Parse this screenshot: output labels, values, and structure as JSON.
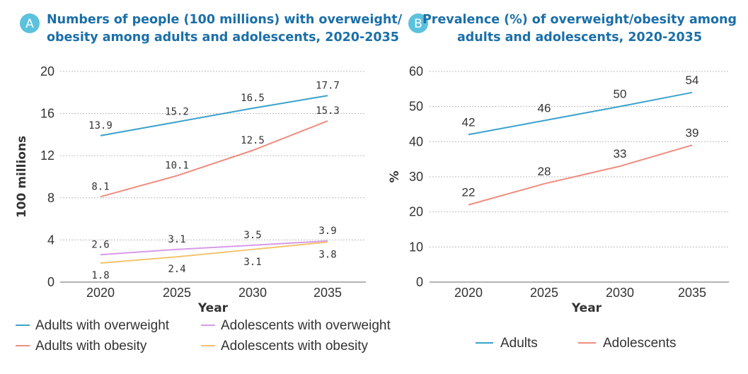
{
  "panels": {
    "a": {
      "badge": "A",
      "title_line1": "Numbers of people (100 millions) with overweight/",
      "title_line2": "obesity among adults and adolescents,  2020-2035"
    },
    "b": {
      "badge": "B",
      "title_line1": "Prevalence (%) of overweight/obesity among",
      "title_line2": "adults and adolescents,  2020-2035"
    }
  },
  "chart_data": [
    {
      "type": "line",
      "title": "Numbers of people (100 millions) with overweight/obesity among adults and adolescents,  2020-2035",
      "xlabel": "Year",
      "ylabel": "100 millions",
      "x": [
        2020,
        2025,
        2030,
        2035
      ],
      "xticks": [
        "2020",
        "2025",
        "2030",
        "2035"
      ],
      "ylim": [
        0,
        20
      ],
      "yticks": [
        0,
        4,
        8,
        12,
        16,
        20
      ],
      "legend": "bottom",
      "series": [
        {
          "name": "Adults with overweight",
          "color": "#3aa2cc",
          "values": [
            13.9,
            15.2,
            16.5,
            17.7
          ],
          "labels": [
            "13.9",
            "15.2",
            "16.5",
            "17.7"
          ]
        },
        {
          "name": "Adults with obesity",
          "color": "#f08c80",
          "values": [
            8.1,
            10.1,
            12.5,
            15.3
          ],
          "labels": [
            "8.1",
            "10.1",
            "12.5",
            "15.3"
          ]
        },
        {
          "name": "Adolescents with overweight",
          "color": "#d69be8",
          "values": [
            2.6,
            3.1,
            3.5,
            3.9
          ],
          "labels": [
            "2.6",
            "3.1",
            "3.5",
            "3.9"
          ]
        },
        {
          "name": "Adolescents with obesity",
          "color": "#f3c46e",
          "values": [
            1.8,
            2.4,
            3.1,
            3.8
          ],
          "labels": [
            "1.8",
            "2.4",
            "3.1",
            "3.8"
          ]
        }
      ]
    },
    {
      "type": "line",
      "title": "Prevalence (%) of overweight/obesity among adults and adolescents,  2020-2035",
      "xlabel": "Year",
      "ylabel": "%",
      "x": [
        2020,
        2025,
        2030,
        2035
      ],
      "xticks": [
        "2020",
        "2025",
        "2030",
        "2035"
      ],
      "ylim": [
        0,
        60
      ],
      "yticks": [
        0,
        10,
        20,
        30,
        40,
        50,
        60
      ],
      "legend": "bottom",
      "series": [
        {
          "name": "Adults",
          "color": "#3aa2cc",
          "values": [
            42,
            46,
            50,
            54
          ],
          "labels": [
            "42",
            "46",
            "50",
            "54"
          ]
        },
        {
          "name": "Adolescents",
          "color": "#f08c80",
          "values": [
            22,
            28,
            33,
            39
          ],
          "labels": [
            "22",
            "28",
            "33",
            "39"
          ]
        }
      ]
    }
  ]
}
